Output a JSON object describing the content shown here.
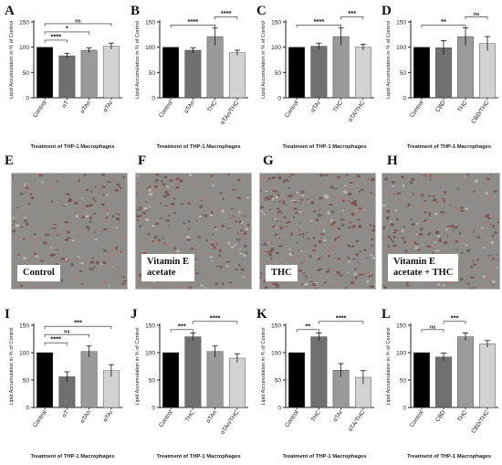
{
  "colors": {
    "black": "#000000",
    "dark_gray": "#707070",
    "mid_gray": "#9a9a9a",
    "light_gray": "#d2d2d2",
    "axis": "#222222"
  },
  "chart_data": [
    {
      "letter": "A",
      "type": "bar",
      "ylabel": "Lipid Accumulation in % of Control",
      "xlabel": "Treatment of THP-1 Macrophages",
      "categories": [
        "Control",
        "αT",
        "αTAn",
        "αTAr"
      ],
      "values": [
        100,
        83,
        94,
        102
      ],
      "errors": [
        0,
        5,
        5,
        6
      ],
      "ylim": [
        0,
        150
      ],
      "yticks": [
        0,
        50,
        100,
        150
      ],
      "bar_colors": [
        "#000000",
        "#707070",
        "#9a9a9a",
        "#d2d2d2"
      ],
      "annotations": [
        {
          "from": 0,
          "to": 1,
          "text": "****"
        },
        {
          "from": 0,
          "to": 2,
          "text": "*"
        },
        {
          "from": 0,
          "to": 3,
          "text": "ns"
        }
      ]
    },
    {
      "letter": "B",
      "type": "bar",
      "ylabel": "Lipid Accumulation in % of Control",
      "xlabel": "Treatment of THP-1 Macrophages",
      "categories": [
        "Control",
        "αTAn",
        "THC",
        "αTAn/THC"
      ],
      "values": [
        100,
        94,
        121,
        89
      ],
      "errors": [
        0,
        5,
        17,
        5
      ],
      "ylim": [
        0,
        150
      ],
      "yticks": [
        0,
        50,
        100,
        150
      ],
      "bar_colors": [
        "#000000",
        "#707070",
        "#9a9a9a",
        "#d2d2d2"
      ],
      "annotations": [
        {
          "from": 0,
          "to": 2,
          "text": "****"
        },
        {
          "from": 2,
          "to": 3,
          "text": "****"
        }
      ]
    },
    {
      "letter": "C",
      "type": "bar",
      "ylabel": "Lipid Accumulation in % of Control",
      "xlabel": "Treatment of THP-1 Macrophages",
      "categories": [
        "Control",
        "αTAr",
        "THC",
        "αTA/THC"
      ],
      "values": [
        100,
        102,
        121,
        100
      ],
      "errors": [
        0,
        6,
        17,
        6
      ],
      "ylim": [
        0,
        150
      ],
      "yticks": [
        0,
        50,
        100,
        150
      ],
      "bar_colors": [
        "#000000",
        "#707070",
        "#9a9a9a",
        "#d2d2d2"
      ],
      "annotations": [
        {
          "from": 0,
          "to": 2,
          "text": "****"
        },
        {
          "from": 2,
          "to": 3,
          "text": "***"
        }
      ]
    },
    {
      "letter": "D",
      "type": "bar",
      "ylabel": "Lipid Accumulation in % of Control",
      "xlabel": "Treatment of THP-1 Macrophages",
      "categories": [
        "Control",
        "CBD",
        "THC",
        "CBD/THC"
      ],
      "values": [
        100,
        99,
        121,
        107
      ],
      "errors": [
        0,
        14,
        17,
        14
      ],
      "ylim": [
        0,
        150
      ],
      "yticks": [
        0,
        50,
        100,
        150
      ],
      "bar_colors": [
        "#000000",
        "#707070",
        "#9a9a9a",
        "#d2d2d2"
      ],
      "annotations": [
        {
          "from": 0,
          "to": 2,
          "text": "**"
        },
        {
          "from": 2,
          "to": 3,
          "text": "ns"
        }
      ]
    },
    {
      "letter": "I",
      "type": "bar",
      "ylabel": "Lipid Accumulation in % of Control",
      "xlabel": "Treatment of THP-1 Macrophages",
      "categories": [
        "Control",
        "αT",
        "αTAn",
        "αTAr"
      ],
      "values": [
        100,
        56,
        102,
        67
      ],
      "errors": [
        0,
        9,
        10,
        11
      ],
      "ylim": [
        0,
        150
      ],
      "yticks": [
        0,
        50,
        100,
        150
      ],
      "bar_colors": [
        "#000000",
        "#707070",
        "#9a9a9a",
        "#d2d2d2"
      ],
      "annotations": [
        {
          "from": 0,
          "to": 1,
          "text": "****"
        },
        {
          "from": 0,
          "to": 2,
          "text": "ns"
        },
        {
          "from": 0,
          "to": 3,
          "text": "***"
        }
      ]
    },
    {
      "letter": "J",
      "type": "bar",
      "ylabel": "Lipid Accumulation in % of Control",
      "xlabel": "Treatment of THP-1 Macrophages",
      "categories": [
        "Control",
        "THC",
        "αTAn",
        "αTAn/THC"
      ],
      "values": [
        100,
        129,
        102,
        90
      ],
      "errors": [
        0,
        7,
        10,
        8
      ],
      "ylim": [
        0,
        150
      ],
      "yticks": [
        0,
        50,
        100,
        150
      ],
      "bar_colors": [
        "#000000",
        "#707070",
        "#9a9a9a",
        "#d2d2d2"
      ],
      "annotations": [
        {
          "from": 0,
          "to": 1,
          "text": "***"
        },
        {
          "from": 1,
          "to": 3,
          "text": "****"
        }
      ]
    },
    {
      "letter": "K",
      "type": "bar",
      "ylabel": "Lipid Accumulation in % of Control",
      "xlabel": "Treatment of THP-1 Macrophages",
      "categories": [
        "Control",
        "THC",
        "αTAr",
        "αTA/THC"
      ],
      "values": [
        100,
        129,
        68,
        55
      ],
      "errors": [
        0,
        7,
        12,
        12
      ],
      "ylim": [
        0,
        150
      ],
      "yticks": [
        0,
        50,
        100,
        150
      ],
      "bar_colors": [
        "#000000",
        "#707070",
        "#9a9a9a",
        "#d2d2d2"
      ],
      "annotations": [
        {
          "from": 0,
          "to": 1,
          "text": "**"
        },
        {
          "from": 1,
          "to": 3,
          "text": "****"
        }
      ]
    },
    {
      "letter": "L",
      "type": "bar",
      "ylabel": "Lipid Accumulation in % of Control",
      "xlabel": "Treatment of THP-1 Macrophages",
      "categories": [
        "Control",
        "CBD",
        "THC",
        "CBD/THC"
      ],
      "values": [
        100,
        92,
        129,
        116
      ],
      "errors": [
        0,
        7,
        7,
        6
      ],
      "ylim": [
        0,
        150
      ],
      "yticks": [
        0,
        50,
        100,
        150
      ],
      "bar_colors": [
        "#000000",
        "#707070",
        "#9a9a9a",
        "#d2d2d2"
      ],
      "annotations": [
        {
          "from": 0,
          "to": 1,
          "text": "ns"
        },
        {
          "from": 1,
          "to": 2,
          "text": "***"
        }
      ]
    }
  ],
  "micrographs": [
    {
      "letter": "E",
      "caption": "Control"
    },
    {
      "letter": "F",
      "caption": "Vitamin E\nacetate"
    },
    {
      "letter": "G",
      "caption": "THC"
    },
    {
      "letter": "H",
      "caption": "Vitamin E\nacetate + THC"
    }
  ]
}
